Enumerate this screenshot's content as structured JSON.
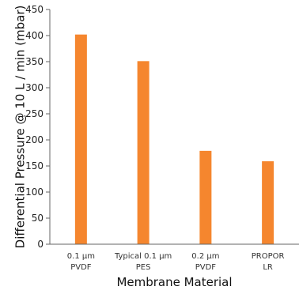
{
  "chart_data": {
    "type": "bar",
    "categories": [
      [
        "0.1 μm",
        "PVDF"
      ],
      [
        "Typical 0.1 μm",
        "PES"
      ],
      [
        "0.2 μm",
        "PVDF"
      ],
      [
        "PROPOR",
        "LR"
      ]
    ],
    "values": [
      402,
      351,
      179,
      159
    ],
    "xlabel": "Membrane Material",
    "ylabel": "Differential Pressure @ 10 L / min (mbar)",
    "ylim": [
      0,
      450
    ],
    "yticks": [
      0,
      50,
      100,
      150,
      200,
      250,
      300,
      350,
      400,
      450
    ],
    "grid": false,
    "bar_color": "#f5862e",
    "axis_color": "#666666"
  }
}
